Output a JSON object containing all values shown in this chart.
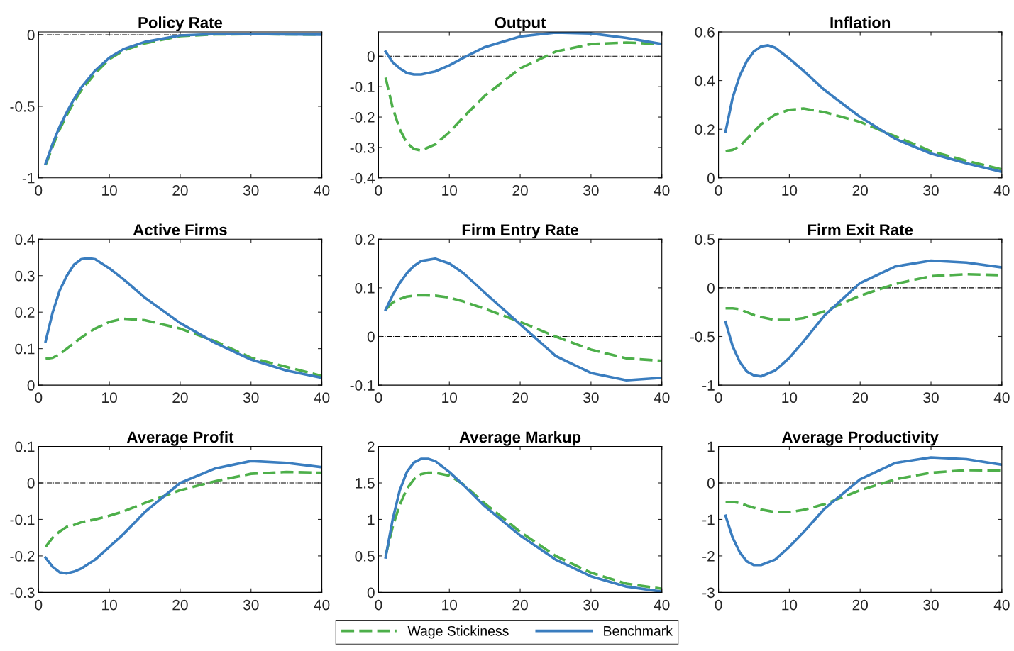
{
  "chart_data": [
    {
      "type": "line",
      "title": "Policy Rate",
      "x": [
        1,
        2,
        3,
        4,
        5,
        6,
        8,
        10,
        12,
        15,
        20,
        25,
        30,
        35,
        40
      ],
      "xlim": [
        0,
        40
      ],
      "xticks": [
        0,
        10,
        20,
        30,
        40
      ],
      "ylim": [
        -1,
        0.02
      ],
      "yticks": [
        -1,
        -0.5,
        0
      ],
      "grid": false,
      "legend": "bottom",
      "ref_lines": [
        {
          "axis": "y",
          "value": 0,
          "color": "#000000",
          "line_style": "dashed"
        }
      ],
      "series": [
        {
          "name": "Wage Stickiness",
          "color": "#4daf4a",
          "line_style": "dashed",
          "values": [
            -0.91,
            -0.78,
            -0.66,
            -0.56,
            -0.47,
            -0.39,
            -0.27,
            -0.17,
            -0.11,
            -0.06,
            -0.01,
            0.003,
            0.004,
            0.003,
            0.001
          ]
        },
        {
          "name": "Benchmark",
          "color": "#3a7dbf",
          "line_style": "solid",
          "values": [
            -0.9,
            -0.76,
            -0.64,
            -0.54,
            -0.45,
            -0.37,
            -0.25,
            -0.16,
            -0.1,
            -0.05,
            -0.005,
            0.005,
            0.005,
            0.003,
            0.001
          ]
        }
      ]
    },
    {
      "type": "line",
      "title": "Output",
      "x": [
        1,
        2,
        3,
        4,
        5,
        6,
        8,
        10,
        12,
        15,
        20,
        25,
        30,
        35,
        40
      ],
      "xlim": [
        0,
        40
      ],
      "xticks": [
        0,
        10,
        20,
        30,
        40
      ],
      "ylim": [
        -0.4,
        0.08
      ],
      "yticks": [
        -0.4,
        -0.3,
        -0.2,
        -0.1,
        0
      ],
      "grid": false,
      "ref_lines": [
        {
          "axis": "y",
          "value": 0,
          "color": "#000000",
          "line_style": "dashed"
        }
      ],
      "series": [
        {
          "color": "#4daf4a",
          "line_style": "dashed",
          "values": [
            -0.07,
            -0.17,
            -0.24,
            -0.285,
            -0.305,
            -0.31,
            -0.29,
            -0.25,
            -0.2,
            -0.13,
            -0.04,
            0.015,
            0.04,
            0.045,
            0.04
          ]
        },
        {
          "color": "#3a7dbf",
          "line_style": "solid",
          "values": [
            0.015,
            -0.02,
            -0.04,
            -0.055,
            -0.06,
            -0.06,
            -0.05,
            -0.03,
            -0.005,
            0.03,
            0.065,
            0.078,
            0.075,
            0.06,
            0.04
          ]
        }
      ]
    },
    {
      "type": "line",
      "title": "Inflation",
      "x": [
        1,
        2,
        3,
        4,
        5,
        6,
        7,
        8,
        10,
        12,
        15,
        20,
        25,
        30,
        35,
        40
      ],
      "xlim": [
        0,
        40
      ],
      "xticks": [
        0,
        10,
        20,
        30,
        40
      ],
      "ylim": [
        0,
        0.6
      ],
      "yticks": [
        0,
        0.2,
        0.4,
        0.6
      ],
      "grid": false,
      "series": [
        {
          "color": "#4daf4a",
          "line_style": "dashed",
          "values": [
            0.11,
            0.115,
            0.13,
            0.16,
            0.19,
            0.22,
            0.24,
            0.26,
            0.28,
            0.285,
            0.27,
            0.23,
            0.17,
            0.11,
            0.07,
            0.035
          ]
        },
        {
          "color": "#3a7dbf",
          "line_style": "solid",
          "values": [
            0.19,
            0.33,
            0.42,
            0.48,
            0.52,
            0.54,
            0.545,
            0.535,
            0.49,
            0.44,
            0.36,
            0.25,
            0.16,
            0.1,
            0.06,
            0.025
          ]
        }
      ]
    },
    {
      "type": "line",
      "title": "Active Firms",
      "x": [
        1,
        2,
        3,
        4,
        5,
        6,
        7,
        8,
        10,
        12,
        15,
        20,
        25,
        30,
        35,
        40
      ],
      "xlim": [
        0,
        40
      ],
      "xticks": [
        0,
        10,
        20,
        30,
        40
      ],
      "ylim": [
        0,
        0.4
      ],
      "yticks": [
        0,
        0.1,
        0.2,
        0.3,
        0.4
      ],
      "grid": false,
      "series": [
        {
          "color": "#4daf4a",
          "line_style": "dashed",
          "values": [
            0.072,
            0.075,
            0.085,
            0.1,
            0.115,
            0.13,
            0.143,
            0.155,
            0.173,
            0.182,
            0.178,
            0.155,
            0.12,
            0.075,
            0.05,
            0.025
          ]
        },
        {
          "color": "#3a7dbf",
          "line_style": "solid",
          "values": [
            0.12,
            0.2,
            0.26,
            0.3,
            0.33,
            0.345,
            0.348,
            0.345,
            0.32,
            0.29,
            0.24,
            0.17,
            0.115,
            0.07,
            0.04,
            0.02
          ]
        }
      ]
    },
    {
      "type": "line",
      "title": "Firm Entry Rate",
      "x": [
        1,
        2,
        3,
        4,
        5,
        6,
        8,
        10,
        12,
        15,
        20,
        25,
        30,
        35,
        40
      ],
      "xlim": [
        0,
        40
      ],
      "xticks": [
        0,
        10,
        20,
        30,
        40
      ],
      "ylim": [
        -0.1,
        0.2
      ],
      "yticks": [
        -0.1,
        0,
        0.1,
        0.2
      ],
      "grid": false,
      "ref_lines": [
        {
          "axis": "y",
          "value": 0,
          "color": "#000000",
          "line_style": "dashed"
        }
      ],
      "series": [
        {
          "color": "#4daf4a",
          "line_style": "dashed",
          "values": [
            0.055,
            0.07,
            0.077,
            0.082,
            0.084,
            0.085,
            0.084,
            0.08,
            0.072,
            0.057,
            0.03,
            0.0,
            -0.027,
            -0.045,
            -0.05
          ]
        },
        {
          "color": "#3a7dbf",
          "line_style": "solid",
          "values": [
            0.055,
            0.085,
            0.11,
            0.13,
            0.145,
            0.155,
            0.16,
            0.15,
            0.13,
            0.09,
            0.025,
            -0.04,
            -0.075,
            -0.09,
            -0.085
          ]
        }
      ]
    },
    {
      "type": "line",
      "title": "Firm Exit Rate",
      "x": [
        1,
        2,
        3,
        4,
        5,
        6,
        8,
        10,
        12,
        15,
        20,
        25,
        30,
        35,
        40
      ],
      "xlim": [
        0,
        40
      ],
      "xticks": [
        0,
        10,
        20,
        30,
        40
      ],
      "ylim": [
        -1,
        0.5
      ],
      "yticks": [
        -1,
        -0.5,
        0,
        0.5
      ],
      "grid": false,
      "ref_lines": [
        {
          "axis": "y",
          "value": 0,
          "color": "#000000",
          "line_style": "dashed"
        }
      ],
      "series": [
        {
          "color": "#4daf4a",
          "line_style": "dashed",
          "values": [
            -0.21,
            -0.21,
            -0.22,
            -0.25,
            -0.28,
            -0.3,
            -0.33,
            -0.33,
            -0.31,
            -0.24,
            -0.08,
            0.04,
            0.12,
            0.14,
            0.13
          ]
        },
        {
          "color": "#3a7dbf",
          "line_style": "solid",
          "values": [
            -0.35,
            -0.6,
            -0.76,
            -0.86,
            -0.9,
            -0.91,
            -0.85,
            -0.72,
            -0.55,
            -0.28,
            0.05,
            0.22,
            0.28,
            0.26,
            0.21
          ]
        }
      ]
    },
    {
      "type": "line",
      "title": "Average Profit",
      "x": [
        1,
        2,
        3,
        4,
        5,
        6,
        8,
        10,
        12,
        15,
        20,
        25,
        30,
        35,
        40
      ],
      "xlim": [
        0,
        40
      ],
      "xticks": [
        0,
        10,
        20,
        30,
        40
      ],
      "ylim": [
        -0.3,
        0.1
      ],
      "yticks": [
        -0.3,
        -0.2,
        -0.1,
        0,
        0.1
      ],
      "grid": false,
      "ref_lines": [
        {
          "axis": "y",
          "value": 0,
          "color": "#000000",
          "line_style": "dashed"
        }
      ],
      "series": [
        {
          "color": "#4daf4a",
          "line_style": "dashed",
          "values": [
            -0.175,
            -0.15,
            -0.133,
            -0.12,
            -0.115,
            -0.108,
            -0.1,
            -0.09,
            -0.078,
            -0.055,
            -0.02,
            0.005,
            0.025,
            0.03,
            0.028
          ]
        },
        {
          "color": "#3a7dbf",
          "line_style": "solid",
          "values": [
            -0.205,
            -0.23,
            -0.245,
            -0.248,
            -0.243,
            -0.235,
            -0.21,
            -0.175,
            -0.14,
            -0.08,
            0.0,
            0.04,
            0.06,
            0.055,
            0.043
          ]
        }
      ]
    },
    {
      "type": "line",
      "title": "Average Markup",
      "x": [
        1,
        2,
        3,
        4,
        5,
        6,
        7,
        8,
        10,
        12,
        15,
        20,
        25,
        30,
        35,
        40
      ],
      "xlim": [
        0,
        40
      ],
      "xticks": [
        0,
        10,
        20,
        30,
        40
      ],
      "ylim": [
        0,
        2
      ],
      "yticks": [
        0,
        0.5,
        1,
        1.5,
        2
      ],
      "grid": false,
      "series": [
        {
          "color": "#4daf4a",
          "line_style": "dashed",
          "values": [
            0.5,
            0.9,
            1.2,
            1.42,
            1.55,
            1.62,
            1.64,
            1.64,
            1.6,
            1.48,
            1.22,
            0.83,
            0.5,
            0.27,
            0.12,
            0.05
          ]
        },
        {
          "color": "#3a7dbf",
          "line_style": "solid",
          "values": [
            0.48,
            1.0,
            1.4,
            1.65,
            1.78,
            1.83,
            1.83,
            1.8,
            1.65,
            1.47,
            1.18,
            0.78,
            0.45,
            0.22,
            0.08,
            0.01
          ]
        }
      ]
    },
    {
      "type": "line",
      "title": "Average Productivity",
      "x": [
        1,
        2,
        3,
        4,
        5,
        6,
        8,
        10,
        12,
        15,
        20,
        25,
        30,
        35,
        40
      ],
      "xlim": [
        0,
        40
      ],
      "xticks": [
        0,
        10,
        20,
        30,
        40
      ],
      "ylim": [
        -3,
        1
      ],
      "yticks": [
        -3,
        -2,
        -1,
        0,
        1
      ],
      "grid": false,
      "ref_lines": [
        {
          "axis": "y",
          "value": 0,
          "color": "#000000",
          "line_style": "dashed"
        }
      ],
      "series": [
        {
          "color": "#4daf4a",
          "line_style": "dashed",
          "values": [
            -0.52,
            -0.52,
            -0.55,
            -0.62,
            -0.68,
            -0.73,
            -0.8,
            -0.8,
            -0.74,
            -0.58,
            -0.2,
            0.1,
            0.28,
            0.35,
            0.34
          ]
        },
        {
          "color": "#3a7dbf",
          "line_style": "solid",
          "values": [
            -0.9,
            -1.5,
            -1.9,
            -2.15,
            -2.25,
            -2.25,
            -2.1,
            -1.75,
            -1.35,
            -0.7,
            0.1,
            0.55,
            0.7,
            0.65,
            0.5
          ]
        }
      ]
    }
  ]
}
